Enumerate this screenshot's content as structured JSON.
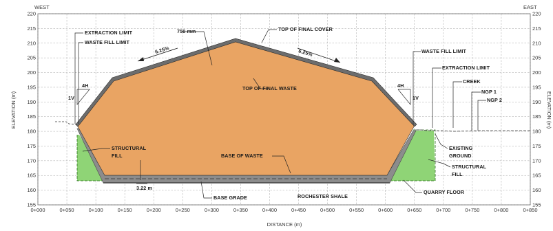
{
  "header": {
    "west": "WEST",
    "east": "EAST"
  },
  "axes": {
    "xlabel": "DISTANCE (m)",
    "ylabel_left": "ELEVATION (m)",
    "ylabel_right": "ELEVATION (m)",
    "x_ticks": [
      "0+000",
      "0+050",
      "0+100",
      "0+150",
      "0+200",
      "0+250",
      "0+300",
      "0+350",
      "0+400",
      "0+450",
      "0+500",
      "0+550",
      "0+600",
      "0+650",
      "0+700",
      "0+750",
      "0+800",
      "0+850"
    ],
    "y_ticks": [
      "155",
      "160",
      "165",
      "170",
      "175",
      "180",
      "185",
      "190",
      "195",
      "200",
      "205",
      "210",
      "215",
      "220"
    ]
  },
  "labels": {
    "extraction_limit_left": "EXTRACTION LIMIT",
    "waste_fill_limit_left": "WASTE FILL LIMIT",
    "cover_thickness": "750 mm",
    "top_of_final_cover": "TOP OF FINAL COVER",
    "slope_left": "6.25%",
    "slope_right": "6.25%",
    "waste_fill_limit_right": "WASTE FILL LIMIT",
    "extraction_limit_right": "EXTRACTION LIMIT",
    "creek": "CREEK",
    "ngp1": "NGP 1",
    "ngp2": "NGP 2",
    "top_of_final_waste": "TOP OF FINAL WASTE",
    "ratio_h_left": "4H",
    "ratio_v_left": "1V",
    "ratio_h_right": "4H",
    "ratio_v_right": "1V",
    "structural_fill_left_1": "STRUCTURAL",
    "structural_fill_left_2": "FILL",
    "base_of_waste": "BASE OF WASTE",
    "existing_ground_1": "EXISTING",
    "existing_ground_2": "GROUND",
    "structural_fill_right_1": "STRUCTURAL",
    "structural_fill_right_2": "FILL",
    "dimension": "3.22 m",
    "base_grade": "BASE GRADE",
    "rochester_shale": "ROCHESTER SHALE",
    "quarry_floor": "QUARRY FLOOR"
  },
  "colors": {
    "waste": "#e9a463",
    "cover": "#6d6d6d",
    "structural_fill": "#8fd476",
    "shale": "#8c8c8c"
  }
}
